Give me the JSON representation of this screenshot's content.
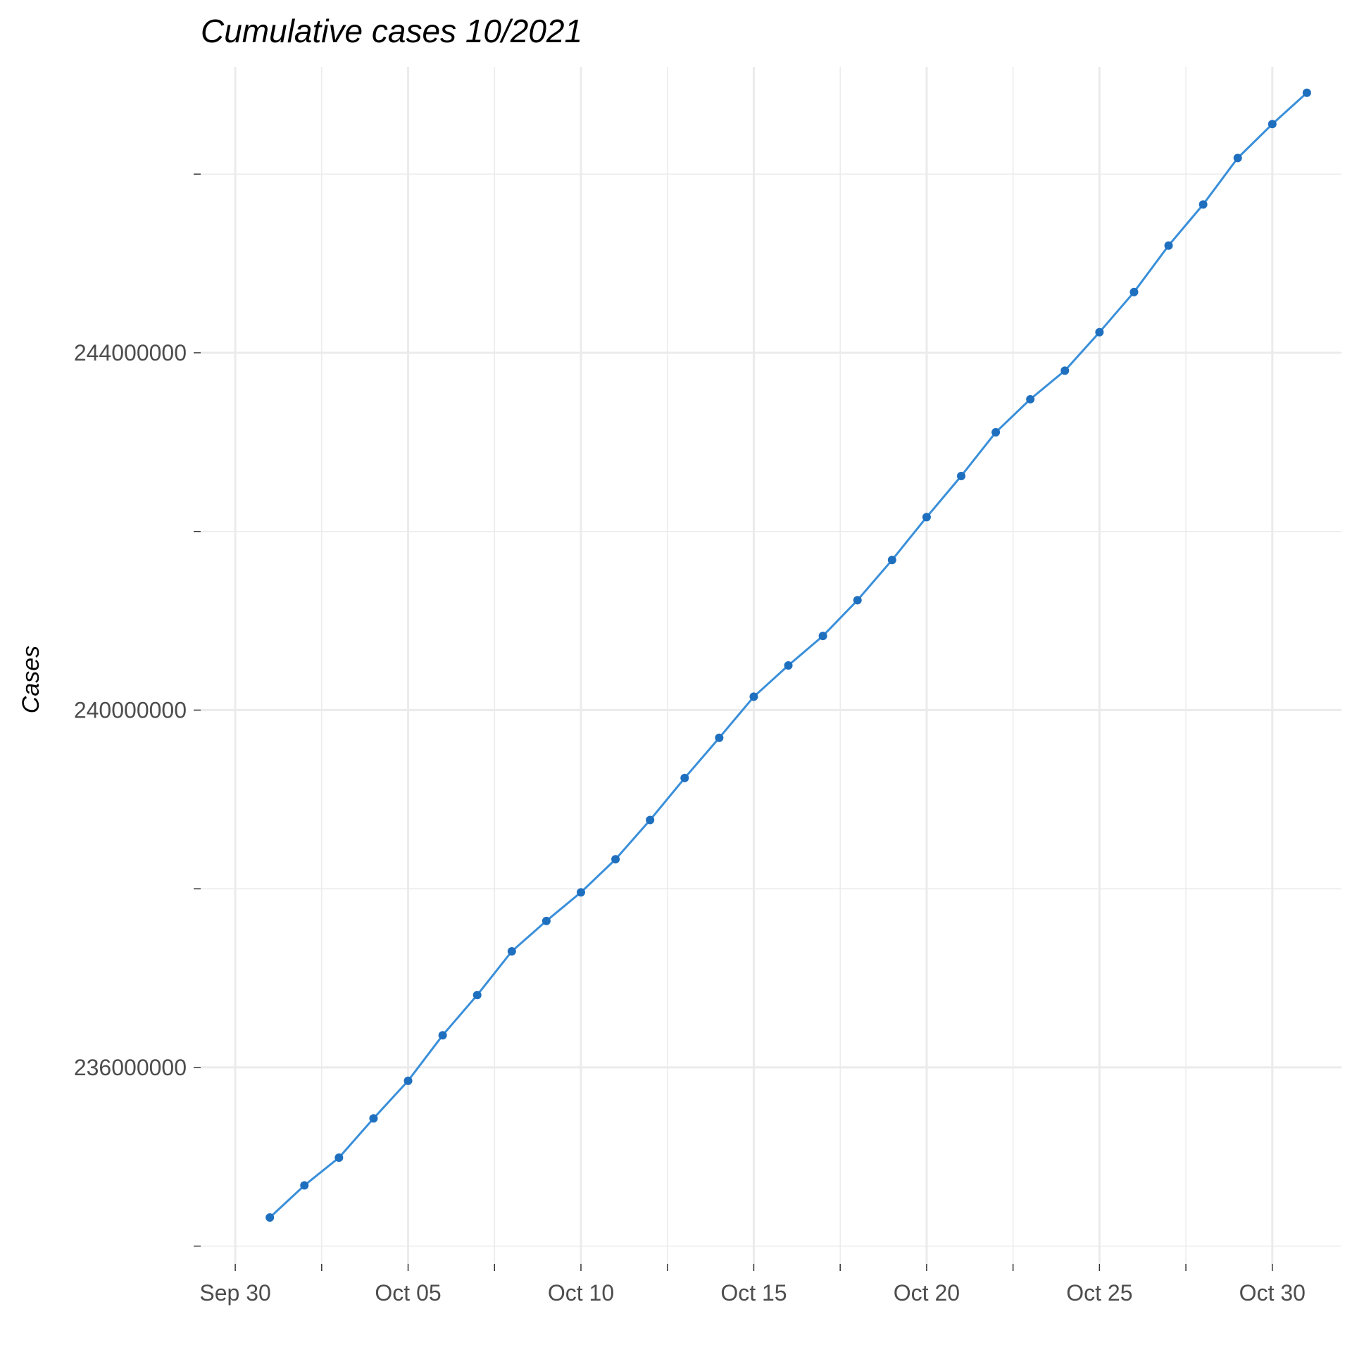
{
  "chart_data": {
    "type": "line",
    "title": "Cumulative cases 10/2021",
    "xlabel": "",
    "ylabel": "Cases",
    "xlim": [
      "2021-09-29",
      "2021-11-01"
    ],
    "ylim": [
      233800000,
      247200000
    ],
    "x_ticks": [
      {
        "date": "2021-09-30",
        "label": "Sep 30"
      },
      {
        "date": "2021-10-05",
        "label": "Oct 05"
      },
      {
        "date": "2021-10-10",
        "label": "Oct 10"
      },
      {
        "date": "2021-10-15",
        "label": "Oct 15"
      },
      {
        "date": "2021-10-20",
        "label": "Oct 20"
      },
      {
        "date": "2021-10-25",
        "label": "Oct 25"
      },
      {
        "date": "2021-10-30",
        "label": "Oct 30"
      }
    ],
    "y_ticks": [
      {
        "value": 236000000,
        "label": "236000000"
      },
      {
        "value": 240000000,
        "label": "240000000"
      },
      {
        "value": 244000000,
        "label": "244000000"
      }
    ],
    "grid": true,
    "series": [
      {
        "color": "#3a8fd9",
        "point_color": "#1f6fbf",
        "x": [
          "2021-10-01",
          "2021-10-02",
          "2021-10-03",
          "2021-10-04",
          "2021-10-05",
          "2021-10-06",
          "2021-10-07",
          "2021-10-08",
          "2021-10-09",
          "2021-10-10",
          "2021-10-11",
          "2021-10-12",
          "2021-10-13",
          "2021-10-14",
          "2021-10-15",
          "2021-10-16",
          "2021-10-17",
          "2021-10-18",
          "2021-10-19",
          "2021-10-20",
          "2021-10-21",
          "2021-10-22",
          "2021-10-23",
          "2021-10-24",
          "2021-10-25",
          "2021-10-26",
          "2021-10-27",
          "2021-10-28",
          "2021-10-29",
          "2021-10-30",
          "2021-10-31"
        ],
        "values": [
          234320000,
          234680000,
          234990000,
          235430000,
          235850000,
          236360000,
          236810000,
          237300000,
          237640000,
          237960000,
          238330000,
          238770000,
          239240000,
          239690000,
          240150000,
          240500000,
          240830000,
          241230000,
          241680000,
          242160000,
          242620000,
          243110000,
          243480000,
          243800000,
          244230000,
          244680000,
          245200000,
          245660000,
          246180000,
          246560000,
          246910000
        ]
      }
    ]
  }
}
